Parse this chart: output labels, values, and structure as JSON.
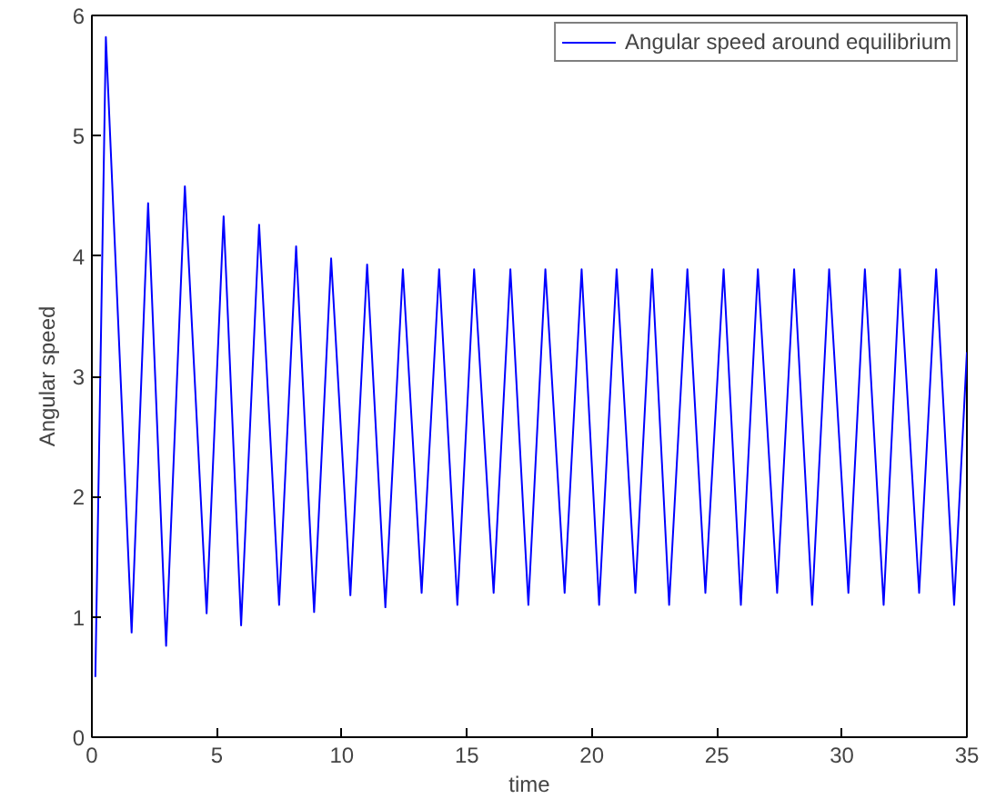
{
  "chart_data": {
    "type": "line",
    "xlabel": "time",
    "ylabel": "Angular speed",
    "xlim": [
      0,
      35
    ],
    "ylim": [
      0,
      6
    ],
    "xticks": [
      0,
      5,
      10,
      15,
      20,
      25,
      30,
      35
    ],
    "yticks": [
      0,
      1,
      2,
      3,
      4,
      5,
      6
    ],
    "grid": false,
    "legend": "top right",
    "marker": "none",
    "line_style": "solid",
    "series": [
      {
        "name": "Angular speed around equilibrium",
        "color": "#0000ff",
        "x": [
          0.14,
          0.56,
          1.59,
          2.25,
          2.97,
          3.72,
          4.59,
          5.27,
          5.97,
          6.69,
          7.49,
          8.17,
          8.89,
          9.57,
          10.34,
          11.01,
          11.74,
          12.44,
          13.19,
          13.89,
          14.62,
          15.29,
          16.07,
          16.74,
          17.46,
          18.14,
          18.91,
          19.59,
          20.29,
          20.99,
          21.74,
          22.41,
          23.09,
          23.82,
          24.54,
          25.27,
          25.96,
          26.64,
          27.41,
          28.09,
          28.81,
          29.49,
          30.26,
          30.92,
          31.67,
          32.32,
          33.09,
          33.77,
          34.49,
          35
        ],
        "values": [
          0.5,
          5.82,
          0.87,
          4.44,
          0.76,
          4.58,
          1.03,
          4.33,
          0.93,
          4.26,
          1.1,
          4.08,
          1.04,
          3.98,
          1.18,
          3.93,
          1.08,
          3.89,
          1.2,
          3.89,
          1.1,
          3.89,
          1.2,
          3.89,
          1.1,
          3.89,
          1.2,
          3.89,
          1.1,
          3.89,
          1.2,
          3.89,
          1.1,
          3.89,
          1.2,
          3.89,
          1.1,
          3.89,
          1.2,
          3.89,
          1.1,
          3.89,
          1.2,
          3.89,
          1.1,
          3.89,
          1.2,
          3.89,
          1.1,
          3.2
        ]
      }
    ]
  }
}
